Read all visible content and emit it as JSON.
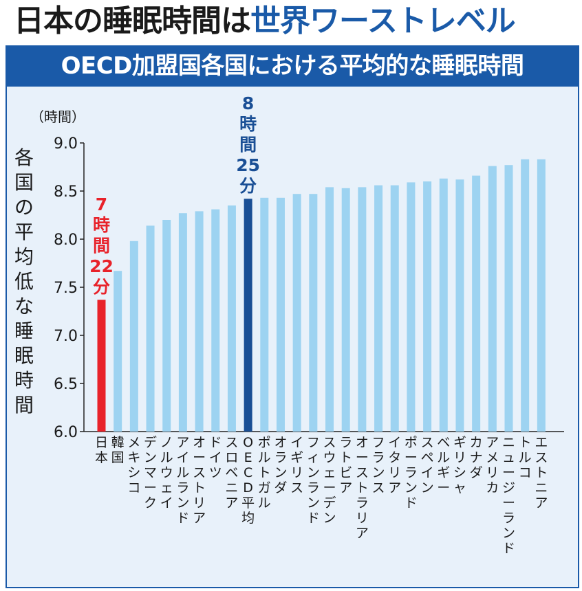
{
  "headline": {
    "part1": "日本の睡眠時間は",
    "part2": "世界ワーストレベル"
  },
  "panel_title": "OECD加盟国各国における平均的な睡眠時間",
  "colors": {
    "default_bar": "#9dd3f1",
    "japan_bar": "#e8222a",
    "oecd_bar": "#1a4f95",
    "accent_blue": "#1a5aa8",
    "panel_bg": "#e8f1fa"
  },
  "chart_data": {
    "type": "bar",
    "orientation": "vertical",
    "unit_label": "（時間）",
    "ylabel": "各国の平均低な睡眠時間",
    "xlabel": "",
    "ylim": [
      6.0,
      9.0
    ],
    "yticks": [
      "6.0",
      "6.5",
      "7.0",
      "7.5",
      "8.0",
      "8.5",
      "9.0"
    ],
    "grid": false,
    "categories": [
      "日本",
      "韓国",
      "メキシコ",
      "デンマーク",
      "ノルウェイ",
      "アイルランド",
      "オーストリア",
      "ドイツ",
      "スロベニア",
      "OECD平均",
      "ポルトガル",
      "オランダ",
      "イギリス",
      "フィンランド",
      "スウェーデン",
      "ラトビア",
      "オーストラリア",
      "フランス",
      "イタリア",
      "ポーランド",
      "スペイン",
      "ベルギー",
      "ギリシャ",
      "カナダ",
      "アメリカ",
      "ニュージーランド",
      "トルコ",
      "エストニア"
    ],
    "values": [
      7.37,
      7.67,
      7.98,
      8.14,
      8.2,
      8.27,
      8.29,
      8.31,
      8.35,
      8.42,
      8.43,
      8.43,
      8.47,
      8.47,
      8.54,
      8.53,
      8.54,
      8.56,
      8.56,
      8.59,
      8.6,
      8.63,
      8.62,
      8.66,
      8.76,
      8.77,
      8.83,
      8.83
    ],
    "highlights": {
      "japan": {
        "index": 0,
        "label": "7時間22分"
      },
      "oecd": {
        "index": 9,
        "label": "8時間25分"
      }
    }
  }
}
